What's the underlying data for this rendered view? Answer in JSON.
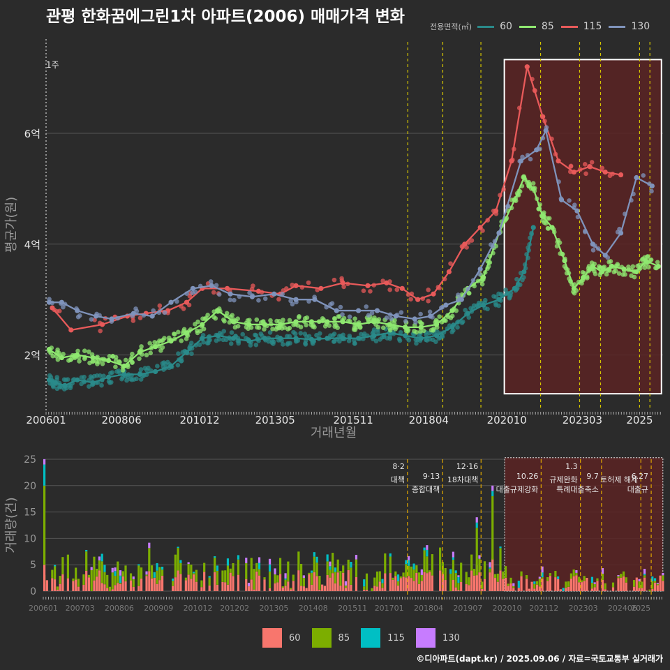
{
  "title": "관평 한화꿈에그린1차 아파트(2006) 매매가격 변화",
  "footer": "©디아파트(dapt.kr) / 2025.09.06 / 자료=국토교통부 실거래가",
  "colors": {
    "bg": "#2b2b2b",
    "grid": "#555555",
    "s60": "#2a8a8a",
    "s85": "#8fe870",
    "s115": "#e85a5a",
    "s130": "#7f93bb",
    "vline": "#d6c700",
    "region": "#5b2323",
    "bar60": "#f8766d",
    "bar85": "#7cae00",
    "bar115": "#00bfc4",
    "bar130": "#c77cff"
  },
  "legend_top": {
    "title": "전용면적(㎡)",
    "items": [
      "60",
      "85",
      "115",
      "130"
    ]
  },
  "legend_bottom": {
    "items": [
      "60",
      "85",
      "115",
      "130"
    ]
  },
  "chart_data": [
    {
      "type": "line",
      "title": "관평 한화꿈에그린1차 아파트(2006) 매매가격 변화",
      "xlabel": "거래년월",
      "ylabel": "평균가(원)",
      "xlim": [
        2006.0,
        2025.75
      ],
      "ylim": [
        1.0,
        7.7
      ],
      "xticks": [
        2006.0,
        2008.417,
        2010.917,
        2013.333,
        2015.833,
        2018.25,
        2020.75,
        2023.167,
        2025.0
      ],
      "xtick_labels": [
        "200601",
        "200806",
        "201012",
        "201305",
        "201511",
        "201804",
        "202010",
        "202303",
        "2025"
      ],
      "yticks": [
        2,
        4,
        6
      ],
      "ytick_labels": [
        "2억",
        "4억",
        "6억"
      ],
      "corner_label": "1주",
      "vlines": [
        2017.58,
        2018.7,
        2019.92,
        2021.83,
        2023.08,
        2023.75,
        2025.0,
        2025.33
      ],
      "highlight": {
        "x": [
          2020.67,
          2025.75
        ],
        "y": [
          1.3,
          7.33
        ]
      },
      "series": [
        {
          "name": "60",
          "x": [
            2006.1,
            2006.3,
            2006.6,
            2007.0,
            2007.5,
            2008.0,
            2008.5,
            2009.0,
            2009.5,
            2010.0,
            2010.5,
            2011.0,
            2011.5,
            2012.0,
            2012.5,
            2013.0,
            2013.5,
            2014.0,
            2014.5,
            2015.0,
            2015.5,
            2016.0,
            2016.5,
            2017.0,
            2017.5,
            2018.0,
            2018.5,
            2019.0,
            2019.5,
            2020.0,
            2020.5,
            2021.0,
            2021.3,
            2021.6
          ],
          "y": [
            1.55,
            1.5,
            1.45,
            1.55,
            1.5,
            1.6,
            1.65,
            1.65,
            1.7,
            1.8,
            2.05,
            2.3,
            2.35,
            2.3,
            2.25,
            2.3,
            2.3,
            2.3,
            2.28,
            2.3,
            2.3,
            2.3,
            2.35,
            2.4,
            2.35,
            2.3,
            2.35,
            2.5,
            2.75,
            2.9,
            3.0,
            3.2,
            3.5,
            4.3
          ]
        },
        {
          "name": "85",
          "x": [
            2006.1,
            2006.5,
            2007.0,
            2007.5,
            2008.0,
            2008.5,
            2009.0,
            2009.5,
            2010.0,
            2010.5,
            2011.0,
            2011.5,
            2012.0,
            2012.5,
            2013.0,
            2013.5,
            2014.0,
            2014.5,
            2015.0,
            2015.5,
            2016.0,
            2016.5,
            2017.0,
            2017.5,
            2018.0,
            2018.5,
            2019.0,
            2019.5,
            2020.0,
            2020.5,
            2021.0,
            2021.3,
            2021.6,
            2021.9,
            2022.2,
            2022.6,
            2022.9,
            2023.2,
            2023.5,
            2023.8,
            2024.1,
            2024.5,
            2024.9,
            2025.2,
            2025.6
          ],
          "y": [
            2.1,
            1.95,
            2.0,
            1.95,
            1.9,
            1.8,
            2.05,
            2.15,
            2.25,
            2.4,
            2.55,
            2.8,
            2.6,
            2.55,
            2.55,
            2.55,
            2.6,
            2.6,
            2.6,
            2.6,
            2.55,
            2.6,
            2.55,
            2.5,
            2.5,
            2.55,
            2.8,
            3.2,
            3.4,
            4.2,
            4.8,
            5.2,
            5.0,
            4.5,
            4.3,
            3.7,
            3.2,
            3.4,
            3.6,
            3.5,
            3.6,
            3.55,
            3.5,
            3.7,
            3.6
          ]
        },
        {
          "name": "115",
          "x": [
            2006.2,
            2006.8,
            2007.8,
            2008.6,
            2009.2,
            2009.9,
            2010.5,
            2011.0,
            2011.8,
            2012.8,
            2013.5,
            2014.0,
            2014.8,
            2015.5,
            2016.3,
            2016.9,
            2017.4,
            2017.9,
            2018.4,
            2018.9,
            2019.4,
            2019.9,
            2020.4,
            2020.9,
            2021.4,
            2021.9,
            2022.4,
            2022.9,
            2023.4,
            2023.9,
            2024.4
          ],
          "y": [
            2.85,
            2.45,
            2.55,
            2.7,
            2.75,
            2.8,
            2.95,
            3.2,
            3.2,
            3.15,
            3.1,
            3.25,
            3.2,
            3.3,
            3.25,
            3.3,
            3.2,
            3.0,
            3.1,
            3.5,
            4.0,
            4.3,
            4.6,
            5.5,
            7.2,
            6.3,
            5.5,
            5.3,
            5.4,
            5.3,
            5.25
          ]
        },
        {
          "name": "130",
          "x": [
            2006.1,
            2006.5,
            2007.0,
            2007.6,
            2008.1,
            2008.8,
            2009.4,
            2010.0,
            2010.7,
            2011.3,
            2011.9,
            2012.6,
            2013.3,
            2014.0,
            2014.6,
            2015.3,
            2016.0,
            2016.6,
            2017.2,
            2017.8,
            2018.3,
            2018.8,
            2019.3,
            2019.9,
            2020.5,
            2021.2,
            2021.7,
            2022.0,
            2022.5,
            2023.0,
            2023.5,
            2023.9,
            2024.4,
            2024.9,
            2025.4
          ],
          "y": [
            2.95,
            2.95,
            2.8,
            2.7,
            2.65,
            2.75,
            2.7,
            2.95,
            3.2,
            3.25,
            3.1,
            3.05,
            3.1,
            3.0,
            3.0,
            2.8,
            2.8,
            2.8,
            2.7,
            2.65,
            2.7,
            2.9,
            3.0,
            3.55,
            4.2,
            5.5,
            5.7,
            6.05,
            4.8,
            4.6,
            4.0,
            3.8,
            4.2,
            5.2,
            5.05
          ]
        }
      ]
    },
    {
      "type": "bar",
      "stacked": true,
      "ylabel": "거래량(건)",
      "xlim": [
        2006.0,
        2025.75
      ],
      "ylim": [
        0,
        25
      ],
      "yticks": [
        0,
        5,
        10,
        15,
        20,
        25
      ],
      "xticks": [
        2006.0,
        2007.167,
        2008.417,
        2009.667,
        2010.917,
        2012.083,
        2013.333,
        2014.583,
        2015.833,
        2017.0,
        2018.25,
        2019.5,
        2020.75,
        2021.917,
        2023.167,
        2024.417,
        2025.0
      ],
      "xtick_labels": [
        "200601",
        "200703",
        "200806",
        "200909",
        "201012",
        "201202",
        "201305",
        "201408",
        "201511",
        "201701",
        "201804",
        "201907",
        "202010",
        "202112",
        "202303",
        "202406",
        "2025"
      ],
      "series_names": [
        "60",
        "85",
        "115",
        "130"
      ],
      "major": {
        "x": [
          2006.0,
          2019.75,
          2020.25
        ],
        "totals": [
          25,
          14,
          20
        ],
        "parts": [
          [
            5,
            15,
            4,
            1
          ],
          [
            3,
            9,
            1,
            1
          ],
          [
            6,
            12,
            1,
            1
          ]
        ]
      },
      "highlight": {
        "x": [
          2020.67,
          2025.75
        ]
      },
      "annotations": [
        {
          "x": 2017.58,
          "date": "8·2",
          "label": "대책"
        },
        {
          "x": 2018.7,
          "date": "9·13",
          "label": "종합대책"
        },
        {
          "x": 2019.92,
          "date": "12·16",
          "label": "18차대책"
        },
        {
          "x": 2021.83,
          "date": "10.26",
          "label": "대출규제강화"
        },
        {
          "x": 2023.08,
          "date": "1.3",
          "label": "규제완화"
        },
        {
          "x": 2023.75,
          "date": "9.7",
          "label": "특례대출축소"
        },
        {
          "x": 2025.0,
          "date": "",
          "label": "토허제 해제"
        },
        {
          "x": 2025.33,
          "date": "6.27",
          "label": "대출규"
        }
      ]
    }
  ]
}
